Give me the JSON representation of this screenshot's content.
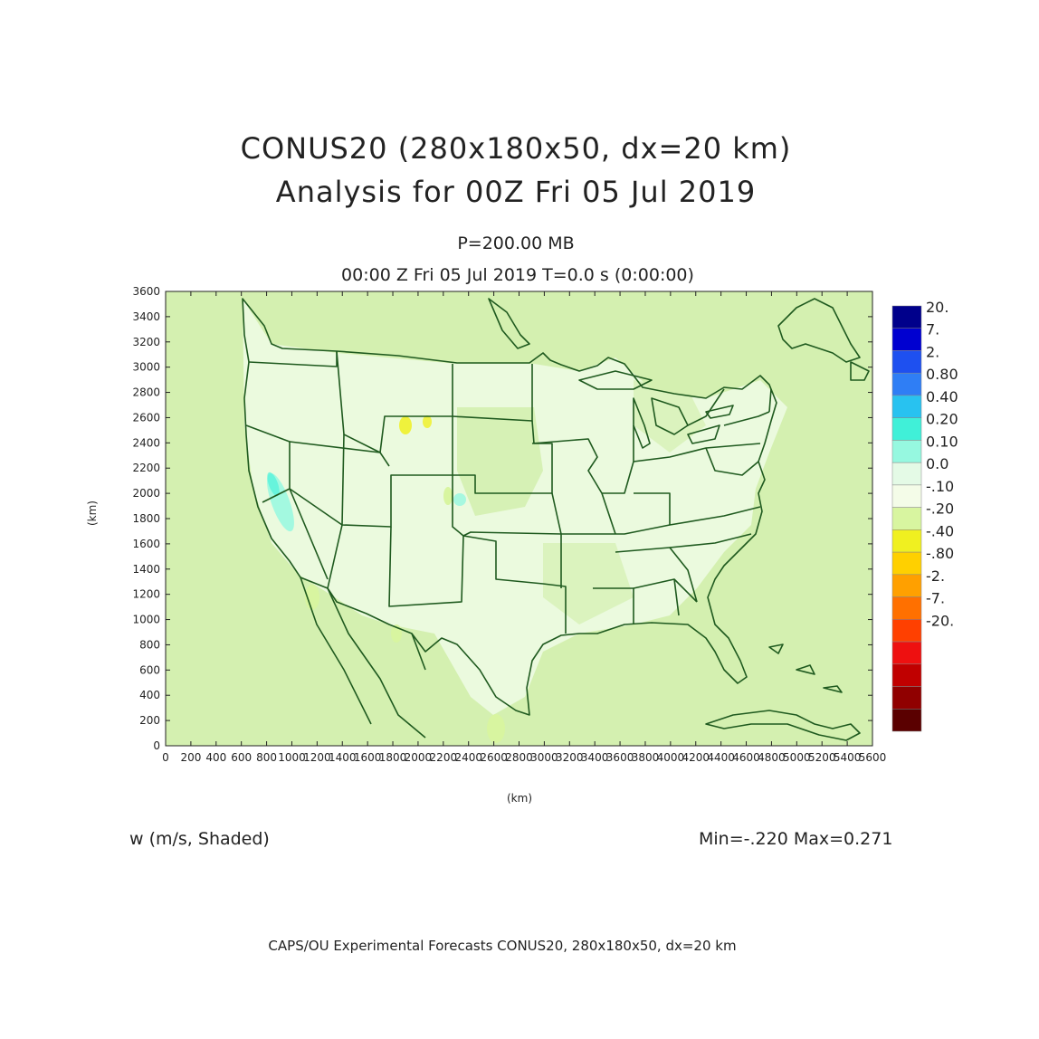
{
  "title": {
    "line1": "CONUS20 (280x180x50, dx=20 km)",
    "line2": "Analysis for 00Z Fri 05 Jul 2019"
  },
  "subtitle": {
    "level": "P=200.00 MB",
    "time": "00:00 Z Fri 05 Jul 2019    T=0.0 s (0:00:00)"
  },
  "axes": {
    "xlabel": "(km)",
    "ylabel": "(km)",
    "x_ticks": [
      "0",
      "200",
      "400",
      "600",
      "800",
      "1000",
      "1200",
      "1400",
      "1600",
      "1800",
      "2000",
      "2200",
      "2400",
      "2600",
      "2800",
      "3000",
      "3200",
      "3400",
      "3600",
      "3800",
      "4000",
      "4200",
      "4400",
      "4600",
      "4800",
      "5000",
      "5200",
      "5400",
      "5600"
    ],
    "y_ticks": [
      "0",
      "200",
      "400",
      "600",
      "800",
      "1000",
      "1200",
      "1400",
      "1600",
      "1800",
      "2000",
      "2200",
      "2400",
      "2600",
      "2800",
      "3000",
      "3200",
      "3400",
      "3600"
    ]
  },
  "variable_label": "w (m/s, Shaded)",
  "min_max": "Min=-.220  Max=0.271",
  "footer": "CAPS/OU Experimental Forecasts  CONUS20, 280x180x50, dx=20 km",
  "colors": {
    "background_field": "#d4f0b0",
    "near_zero": "#eefbe6",
    "boundaries": "#1f5a1f"
  },
  "colorbar": [
    {
      "label": "20.",
      "color": "#00008b"
    },
    {
      "label": "7.",
      "color": "#0000d0"
    },
    {
      "label": "2.",
      "color": "#1e50f0"
    },
    {
      "label": "0.80",
      "color": "#2f7ef5"
    },
    {
      "label": "0.40",
      "color": "#28c2f0"
    },
    {
      "label": "0.20",
      "color": "#40f0d8"
    },
    {
      "label": "0.10",
      "color": "#96f8e0"
    },
    {
      "label": "0.0",
      "color": "#e4fae6"
    },
    {
      "label": "-.10",
      "color": "#f4fce8"
    },
    {
      "label": "-.20",
      "color": "#d8f5a0"
    },
    {
      "label": "-.40",
      "color": "#f0f020"
    },
    {
      "label": "-.80",
      "color": "#ffd000"
    },
    {
      "label": "-2.",
      "color": "#ffa000"
    },
    {
      "label": "-7.",
      "color": "#ff7000"
    },
    {
      "label": "-20.",
      "color": "#ff4000"
    },
    {
      "label": "",
      "color": "#ee1010"
    },
    {
      "label": "",
      "color": "#c00000"
    },
    {
      "label": "",
      "color": "#900000"
    },
    {
      "label": "",
      "color": "#5a0000"
    }
  ]
}
